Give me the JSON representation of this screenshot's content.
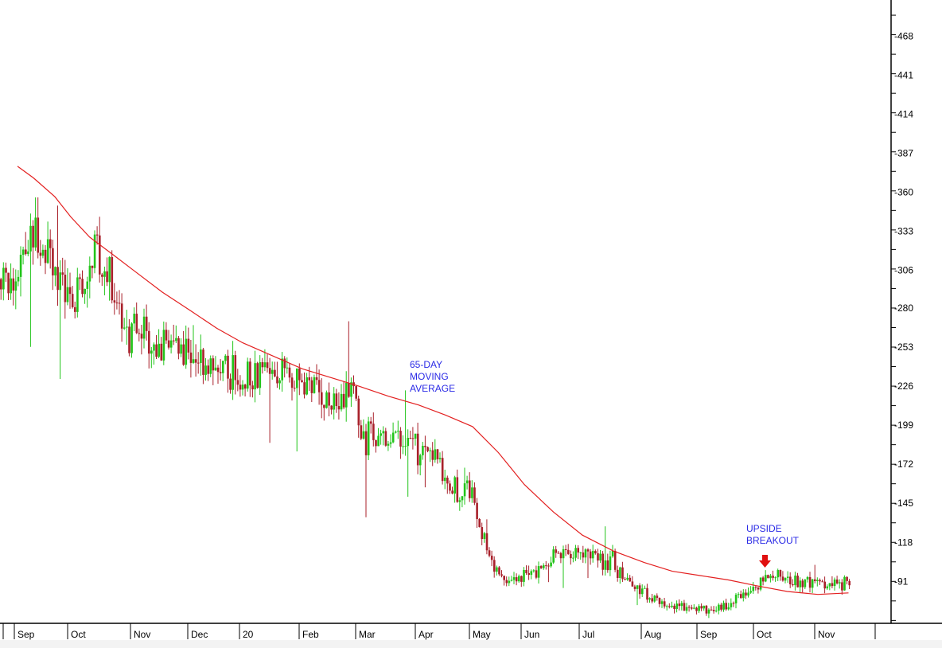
{
  "colors": {
    "background": "#ffffff",
    "axis": "#000000",
    "up_candle": "#22c41a",
    "down_candle": "#a8202a",
    "moving_average": "#e32020",
    "annotation_text": "#2a2ae6",
    "arrow": "#e01010"
  },
  "annotations": {
    "ma_label": [
      "65-DAY",
      "MOVING",
      "AVERAGE"
    ],
    "breakout_label": [
      "UPSIDE",
      "BREAKOUT"
    ],
    "breakout_marker": "arrow-down"
  },
  "chart_data": {
    "type": "candlestick",
    "title": "",
    "xlabel": "",
    "ylabel": "",
    "ylim": [
      62,
      493
    ],
    "y_axis_side": "right",
    "y_ticks": [
      91,
      118,
      145,
      172,
      199,
      226,
      253,
      280,
      306,
      333,
      360,
      387,
      414,
      441,
      468
    ],
    "x_tick_labels": [
      "Sep",
      "Oct",
      "Nov",
      "Dec",
      "20",
      "Feb",
      "Mar",
      "Apr",
      "May",
      "Jun",
      "Jul",
      "Aug",
      "Sep",
      "Oct",
      "Nov"
    ],
    "period": {
      "first_month": "Sep 2019",
      "last_month": "Nov 2020"
    },
    "price_path": {
      "description_unit": "price",
      "month_index": [
        0,
        0.1,
        0.35,
        0.5,
        0.75,
        1.0,
        1.2,
        1.4,
        1.55,
        1.8,
        2.0,
        2.2,
        2.5,
        2.8,
        3.0,
        3.4,
        3.7,
        4.0,
        4.3,
        4.6,
        4.9,
        5.2,
        5.5,
        5.9,
        6.0,
        6.3,
        6.6,
        6.9,
        7.0,
        7.3,
        7.5,
        7.7,
        7.85,
        8.0,
        8.2,
        8.4,
        8.7,
        9.0,
        9.3,
        9.5,
        9.7,
        10.0,
        10.3,
        10.6,
        10.9,
        11.2,
        11.5,
        11.8,
        12.1,
        12.4,
        12.7,
        12.9,
        13.05,
        13.2,
        13.5,
        13.8,
        14.2,
        14.5
      ],
      "close": [
        300,
        315,
        330,
        320,
        305,
        285,
        290,
        325,
        295,
        275,
        268,
        255,
        254,
        250,
        245,
        238,
        240,
        232,
        235,
        238,
        232,
        222,
        218,
        222,
        198,
        192,
        190,
        188,
        182,
        175,
        160,
        150,
        158,
        148,
        120,
        98,
        92,
        95,
        100,
        110,
        108,
        112,
        108,
        98,
        85,
        78,
        75,
        72,
        72,
        74,
        80,
        85,
        90,
        98,
        92,
        90,
        88,
        91
      ]
    },
    "moving_average": {
      "name": "65-DAY MOVING AVERAGE",
      "window_days": 65,
      "month_index": [
        0,
        0.3,
        0.7,
        1.0,
        1.3,
        1.7,
        2.0,
        2.5,
        3.0,
        3.5,
        4.0,
        4.5,
        5.0,
        5.5,
        6.0,
        6.5,
        7.0,
        7.5,
        8.0,
        8.5,
        9.0,
        9.5,
        10.0,
        10.5,
        11.0,
        11.5,
        12.0,
        12.5,
        13.0,
        13.5,
        14.0,
        14.5
      ],
      "values": [
        378,
        370,
        357,
        343,
        329,
        316,
        306,
        291,
        278,
        266,
        256,
        247,
        238,
        232,
        226,
        219,
        213,
        206,
        198,
        180,
        158,
        139,
        123,
        112,
        104,
        98,
        95,
        92,
        88,
        84,
        82,
        83
      ]
    }
  }
}
